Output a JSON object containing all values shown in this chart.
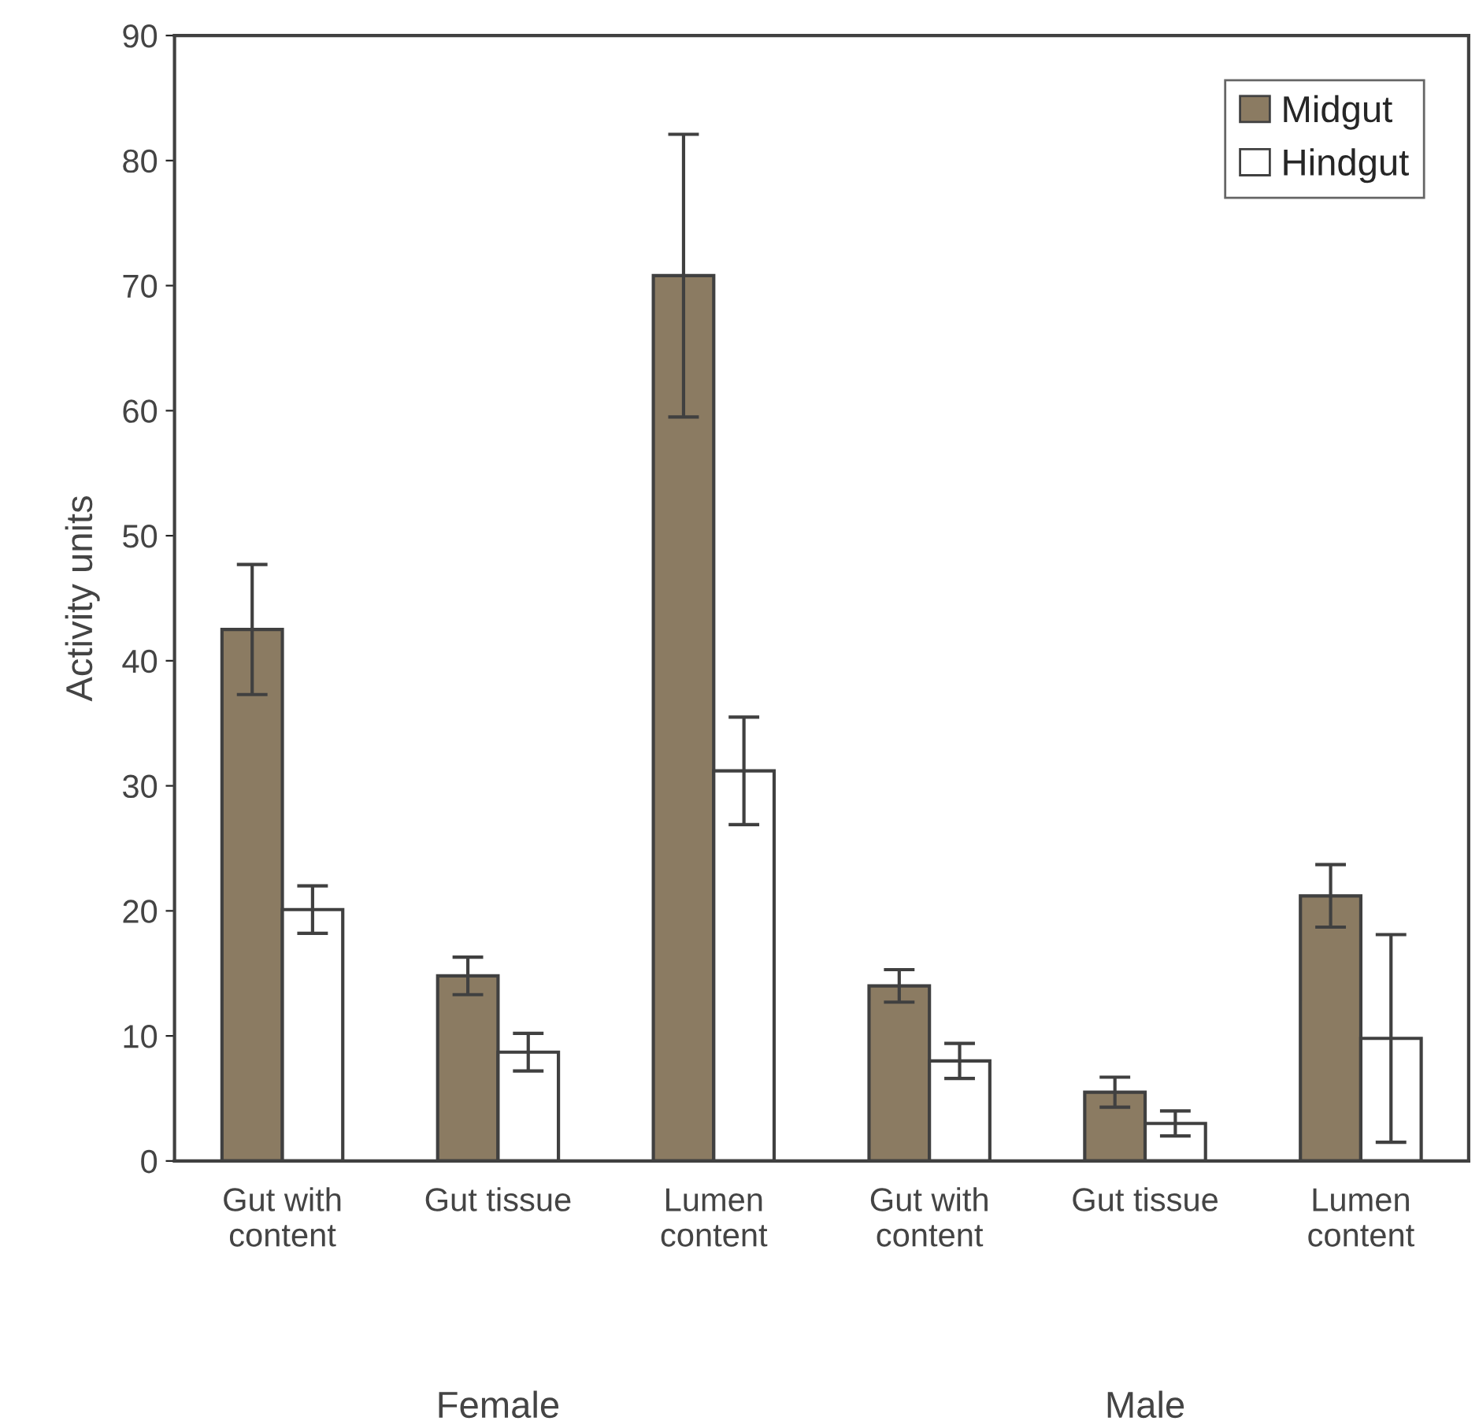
{
  "chart_data": {
    "type": "bar",
    "ylabel": "Activity units",
    "categories": [
      "Gut with\ncontent",
      "Gut tissue",
      "Lumen\ncontent",
      "Gut with\ncontent",
      "Gut tissue",
      "Lumen\ncontent"
    ],
    "series": [
      {
        "name": "Midgut",
        "color": "#8b7b62",
        "values": [
          42.5,
          14.8,
          70.8,
          14.0,
          5.5,
          21.2
        ],
        "errors": [
          5.2,
          1.5,
          11.3,
          1.3,
          1.2,
          2.5
        ]
      },
      {
        "name": "Hindgut",
        "color": "#ffffff",
        "values": [
          20.1,
          8.7,
          31.2,
          8.0,
          3.0,
          9.8
        ],
        "errors": [
          1.9,
          1.5,
          4.3,
          1.4,
          1.0,
          8.3
        ]
      }
    ],
    "ylim": [
      0,
      90
    ],
    "yticks": [
      0,
      10,
      20,
      30,
      40,
      50,
      60,
      70,
      80,
      90
    ],
    "grid": false,
    "legend": "top right",
    "annotations": [
      "Female",
      "Male"
    ]
  }
}
